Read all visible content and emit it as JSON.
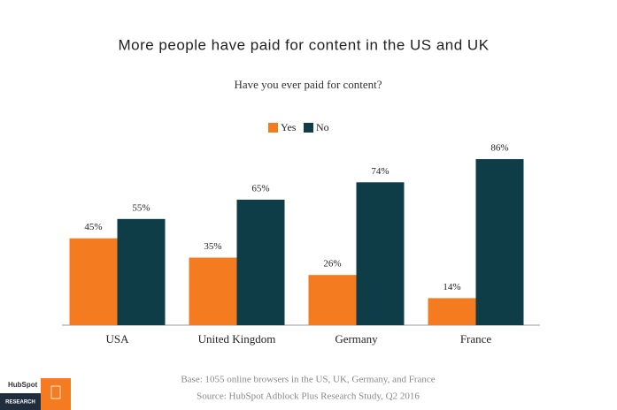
{
  "chart_data": {
    "type": "grouped-bar",
    "title": "More people have paid for content in the US and UK",
    "subtitle": "Have you ever paid for content?",
    "categories": [
      "USA",
      "United Kingdom",
      "Germany",
      "France"
    ],
    "series": [
      {
        "name": "Yes",
        "color": "#f47b20",
        "values": [
          45,
          35,
          26,
          14
        ],
        "value_labels": [
          "45%",
          "35%",
          "26%",
          "14%"
        ]
      },
      {
        "name": "No",
        "color": "#0f3d47",
        "values": [
          55,
          65,
          74,
          86
        ],
        "value_labels": [
          "55%",
          "65%",
          "74%",
          "86%"
        ]
      }
    ],
    "notes": [
      "Base: 1055 online browsers in the US, UK, Germany, and France",
      "Source: HubSpot Adblock Plus Research Study, Q2 2016"
    ],
    "logo_text": "HubSpot",
    "logo_subtext": "RESEARCH"
  }
}
